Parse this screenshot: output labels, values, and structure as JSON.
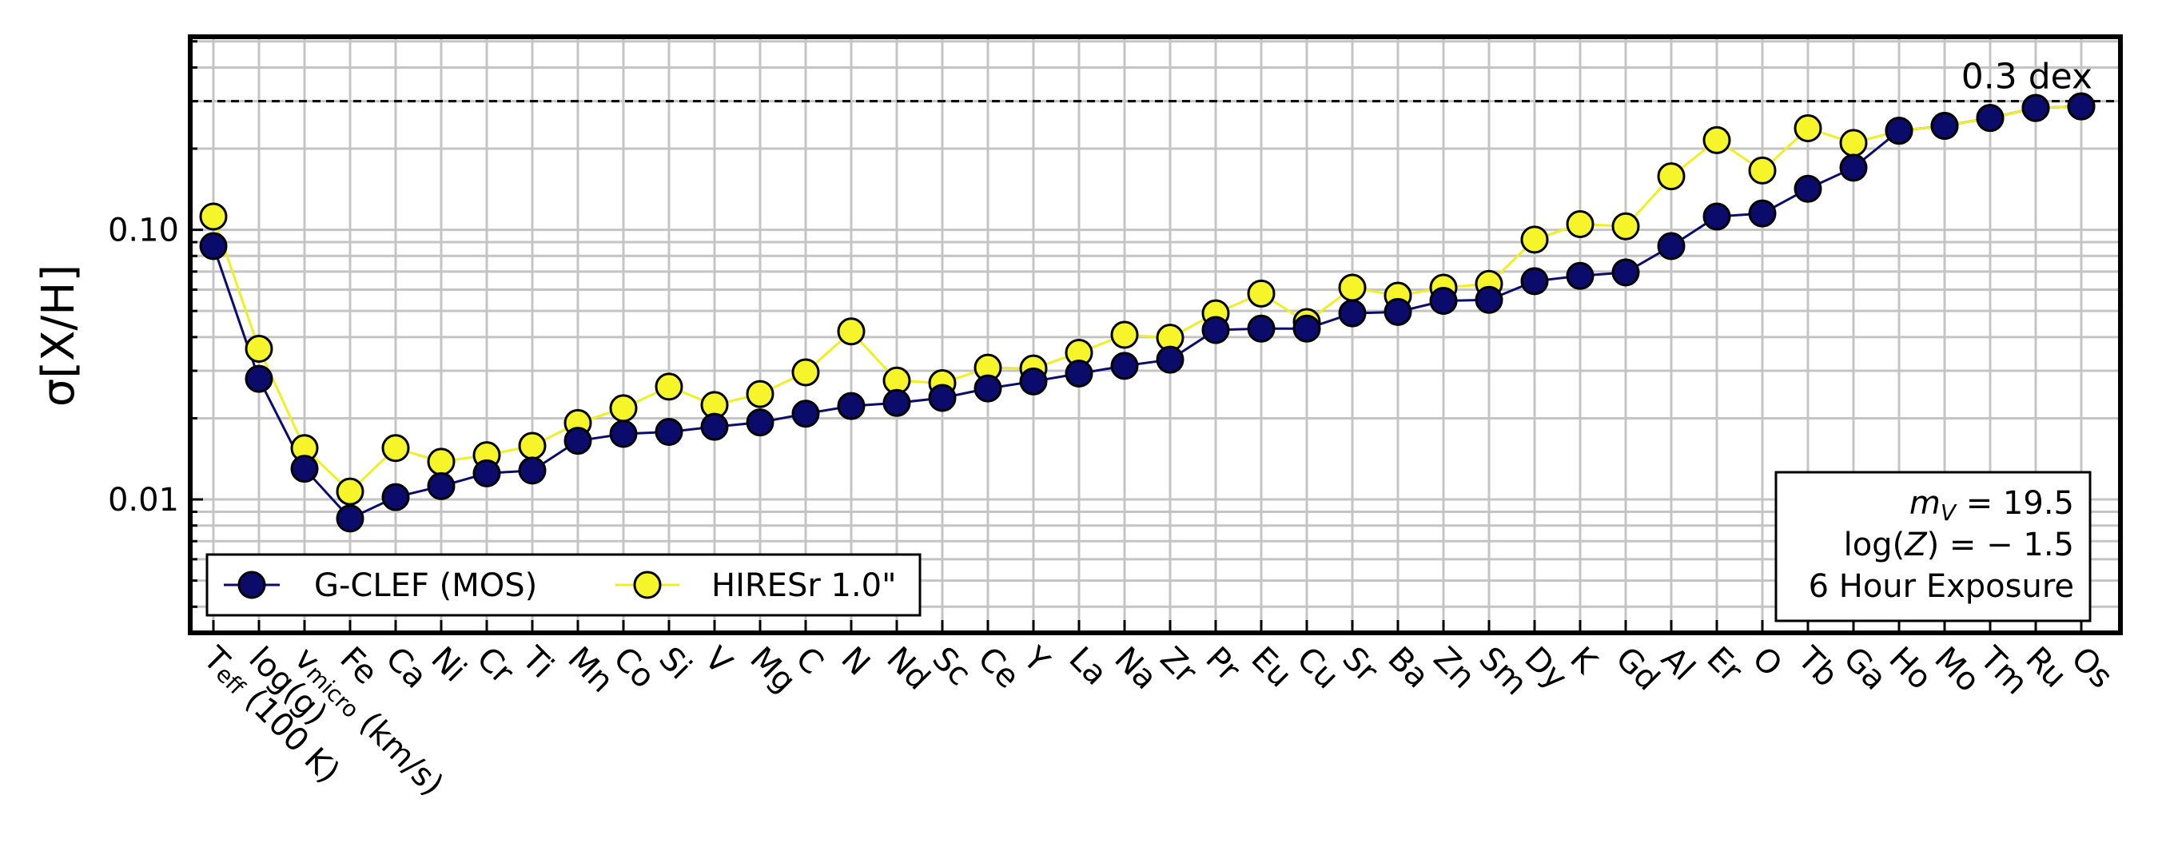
{
  "chart_data": {
    "type": "line",
    "ylabel": "σ[X/H]",
    "xlabel": "",
    "yscale": "log",
    "ylim": [
      0.0032,
      0.52
    ],
    "ytick_values": [
      0.01,
      0.1
    ],
    "ytick_labels": [
      "0.01",
      "0.10"
    ],
    "grid": true,
    "categories": [
      "T_eff (100 K)",
      "log(g)",
      "v_micro (km/s)",
      "Fe",
      "Ca",
      "Ni",
      "Cr",
      "Ti",
      "Mn",
      "Co",
      "Si",
      "V",
      "Mg",
      "C",
      "N",
      "Nd",
      "Sc",
      "Ce",
      "Y",
      "La",
      "Na",
      "Zr",
      "Pr",
      "Eu",
      "Cu",
      "Sr",
      "Ba",
      "Zn",
      "Sm",
      "Dy",
      "K",
      "Gd",
      "Al",
      "Er",
      "O",
      "Tb",
      "Ga",
      "Ho",
      "Mo",
      "Tm",
      "Ru",
      "Os"
    ],
    "category_labels": [
      {
        "main": "T",
        "sub": "eff",
        "rest": " (100 K)"
      },
      {
        "main": "log(g)"
      },
      {
        "main": "v",
        "sub": "micro",
        "rest": " (km/s)"
      },
      {
        "main": "Fe"
      },
      {
        "main": "Ca"
      },
      {
        "main": "Ni"
      },
      {
        "main": "Cr"
      },
      {
        "main": "Ti"
      },
      {
        "main": "Mn"
      },
      {
        "main": "Co"
      },
      {
        "main": "Si"
      },
      {
        "main": "V"
      },
      {
        "main": "Mg"
      },
      {
        "main": "C"
      },
      {
        "main": "N"
      },
      {
        "main": "Nd"
      },
      {
        "main": "Sc"
      },
      {
        "main": "Ce"
      },
      {
        "main": "Y"
      },
      {
        "main": "La"
      },
      {
        "main": "Na"
      },
      {
        "main": "Zr"
      },
      {
        "main": "Pr"
      },
      {
        "main": "Eu"
      },
      {
        "main": "Cu"
      },
      {
        "main": "Sr"
      },
      {
        "main": "Ba"
      },
      {
        "main": "Zn"
      },
      {
        "main": "Sm"
      },
      {
        "main": "Dy"
      },
      {
        "main": "K"
      },
      {
        "main": "Gd"
      },
      {
        "main": "Al"
      },
      {
        "main": "Er"
      },
      {
        "main": "O"
      },
      {
        "main": "Tb"
      },
      {
        "main": "Ga"
      },
      {
        "main": "Ho"
      },
      {
        "main": "Mo"
      },
      {
        "main": "Tm"
      },
      {
        "main": "Ru"
      },
      {
        "main": "Os"
      }
    ],
    "series": [
      {
        "name": "G-CLEF (MOS)",
        "color": "#0b0b6b",
        "line_color": "#0b0b6b",
        "values": [
          0.087,
          0.028,
          0.013,
          0.0085,
          0.0102,
          0.0112,
          0.0125,
          0.0128,
          0.0165,
          0.0175,
          0.0178,
          0.0186,
          0.0193,
          0.0208,
          0.0222,
          0.0228,
          0.0238,
          0.0258,
          0.0274,
          0.0293,
          0.0313,
          0.033,
          0.0425,
          0.043,
          0.043,
          0.049,
          0.0496,
          0.0545,
          0.055,
          0.0645,
          0.0675,
          0.0695,
          0.087,
          0.112,
          0.115,
          0.142,
          0.17,
          0.233,
          0.243,
          0.26,
          0.283,
          0.287
        ]
      },
      {
        "name": "HIRESr 1.0\"",
        "color": "#f5f52a",
        "line_color": "#f0f020",
        "values": [
          0.112,
          0.0362,
          0.0155,
          0.0107,
          0.0155,
          0.0138,
          0.0146,
          0.0158,
          0.0192,
          0.0218,
          0.0262,
          0.0224,
          0.0246,
          0.0296,
          0.042,
          0.0276,
          0.027,
          0.0308,
          0.0306,
          0.035,
          0.0408,
          0.0398,
          0.049,
          0.058,
          0.0455,
          0.061,
          0.057,
          0.061,
          0.063,
          0.092,
          0.105,
          0.103,
          0.158,
          0.215,
          0.166,
          0.238,
          0.21,
          0.233,
          0.243,
          0.26,
          0.283,
          0.287
        ]
      }
    ],
    "reference_line": {
      "value": 0.3,
      "label": "0.3 dex",
      "style": "dashed"
    },
    "legend": {
      "placement": "lower-left",
      "columns": 2
    },
    "annotation_box": {
      "placement": "lower-right",
      "line1": {
        "var": "m",
        "sub": "V",
        "rest": " = 19.5"
      },
      "line2": {
        "pre": "log(",
        "var": "Z",
        "rest": ") = − 1.5"
      },
      "line3": "6 Hour Exposure"
    }
  }
}
